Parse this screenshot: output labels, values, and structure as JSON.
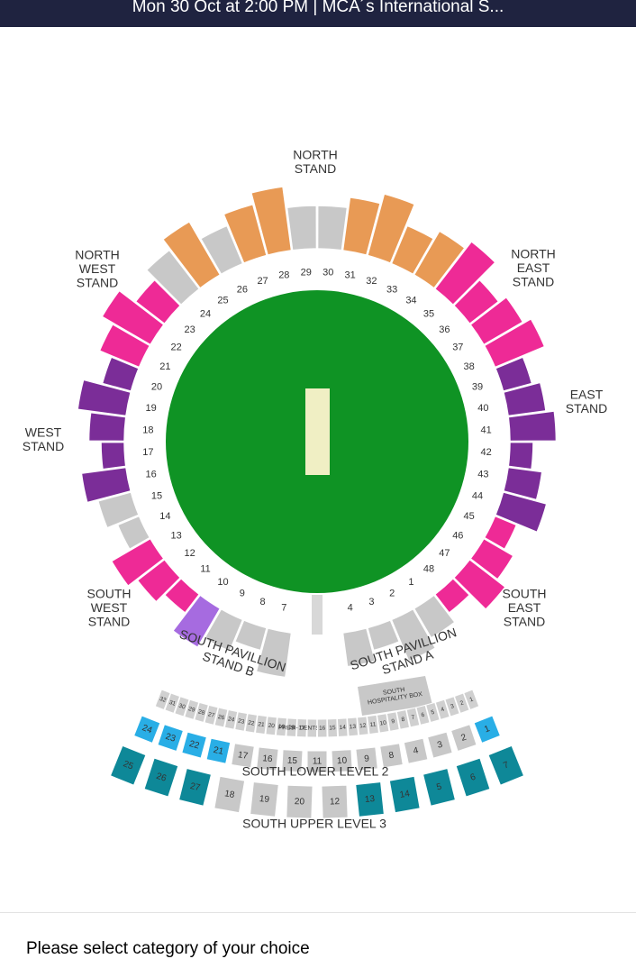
{
  "header": {
    "title": "Mon 30 Oct at 2:00 PM | MCA´s International S..."
  },
  "ring": [
    {
      "label": 30,
      "color": "#c8c8c8"
    },
    {
      "label": 31,
      "color": "#e89a55"
    },
    {
      "label": 32,
      "color": "#e89a55"
    },
    {
      "label": 33,
      "color": "#e89a55"
    },
    {
      "label": 34,
      "color": "#e89a55"
    },
    {
      "label": 35,
      "color": "#ee2a96"
    },
    {
      "label": 36,
      "color": "#ee2a96"
    },
    {
      "label": 37,
      "color": "#ee2a96"
    },
    {
      "label": 38,
      "color": "#ee2a96"
    },
    {
      "label": 39,
      "color": "#7b2d98"
    },
    {
      "label": 40,
      "color": "#7b2d98"
    },
    {
      "label": 41,
      "color": "#7b2d98"
    },
    {
      "label": 42,
      "color": "#7b2d98"
    },
    {
      "label": 43,
      "color": "#7b2d98"
    },
    {
      "label": 44,
      "color": "#7b2d98"
    },
    {
      "label": 45,
      "color": "#ee2a96"
    },
    {
      "label": 46,
      "color": "#ee2a96"
    },
    {
      "label": 47,
      "color": "#ee2a96"
    },
    {
      "label": 48,
      "color": "#ee2a96"
    },
    {
      "label": 1,
      "color": "#c8c8c8"
    },
    {
      "label": 2,
      "color": "#c8c8c8"
    },
    {
      "label": 3,
      "color": "#c8c8c8"
    },
    {
      "label": 4,
      "color": "#c8c8c8"
    },
    {
      "label": 7,
      "color": "#c8c8c8"
    },
    {
      "label": 8,
      "color": "#c8c8c8"
    },
    {
      "label": 9,
      "color": "#c8c8c8"
    },
    {
      "label": 10,
      "color": "#a66be0"
    },
    {
      "label": 11,
      "color": "#ee2a96"
    },
    {
      "label": 12,
      "color": "#ee2a96"
    },
    {
      "label": 13,
      "color": "#ee2a96"
    },
    {
      "label": 14,
      "color": "#c8c8c8"
    },
    {
      "label": 15,
      "color": "#c8c8c8"
    },
    {
      "label": 16,
      "color": "#7b2d98"
    },
    {
      "label": 17,
      "color": "#7b2d98"
    },
    {
      "label": 18,
      "color": "#7b2d98"
    },
    {
      "label": 19,
      "color": "#7b2d98"
    },
    {
      "label": 20,
      "color": "#7b2d98"
    },
    {
      "label": 21,
      "color": "#ee2a96"
    },
    {
      "label": 22,
      "color": "#ee2a96"
    },
    {
      "label": 23,
      "color": "#ee2a96"
    },
    {
      "label": 24,
      "color": "#c8c8c8"
    },
    {
      "label": 25,
      "color": "#e89a55"
    },
    {
      "label": 26,
      "color": "#c8c8c8"
    },
    {
      "label": 27,
      "color": "#e89a55"
    },
    {
      "label": 28,
      "color": "#e89a55"
    },
    {
      "label": 29,
      "color": "#c8c8c8"
    }
  ],
  "stands": {
    "north": [
      "NORTH",
      "STAND"
    ],
    "north_west": [
      "NORTH",
      "WEST",
      "STAND"
    ],
    "north_east": [
      "NORTH",
      "EAST",
      "STAND"
    ],
    "east": [
      "EAST",
      "STAND"
    ],
    "west": [
      "WEST",
      "STAND"
    ],
    "south_west": [
      "SOUTH",
      "WEST",
      "STAND"
    ],
    "south_east": [
      "SOUTH",
      "EAST",
      "STAND"
    ],
    "pavillion_b": [
      "SOUTH PAVILLION",
      "STAND B"
    ],
    "pavillion_a": [
      "SOUTH PAVILLION",
      "STAND A"
    ]
  },
  "hospitality": [
    "SOUTH",
    "HOSPITALITY BOX"
  ],
  "small_row": [
    "32",
    "31",
    "30",
    "29",
    "28",
    "27",
    "26",
    "24",
    "23",
    "22",
    "21",
    "20",
    "19",
    "18",
    "17",
    "PRESI- DENTS LOUNGE",
    "16",
    "15",
    "14",
    "13",
    "12",
    "11",
    "10",
    "9",
    "8",
    "7",
    "6",
    "5",
    "4",
    "3",
    "2",
    "1"
  ],
  "lower_level": {
    "title": "SOUTH LOWER LEVEL 2",
    "blocks": [
      {
        "label": 24,
        "color": "#29aee6"
      },
      {
        "label": 23,
        "color": "#29aee6"
      },
      {
        "label": 22,
        "color": "#29aee6"
      },
      {
        "label": 21,
        "color": "#29aee6"
      },
      {
        "label": 17,
        "color": "#c8c8c8"
      },
      {
        "label": 16,
        "color": "#c8c8c8"
      },
      {
        "label": 15,
        "color": "#c8c8c8"
      },
      {
        "label": 11,
        "color": "#c8c8c8"
      },
      {
        "label": 10,
        "color": "#c8c8c8"
      },
      {
        "label": 9,
        "color": "#c8c8c8"
      },
      {
        "label": 8,
        "color": "#c8c8c8"
      },
      {
        "label": 4,
        "color": "#c8c8c8"
      },
      {
        "label": 3,
        "color": "#c8c8c8"
      },
      {
        "label": 2,
        "color": "#c8c8c8"
      },
      {
        "label": 1,
        "color": "#29aee6"
      }
    ]
  },
  "upper_level": {
    "title": "SOUTH UPPER LEVEL 3",
    "blocks": [
      {
        "label": 25,
        "color": "#0e8898"
      },
      {
        "label": 26,
        "color": "#0e8898"
      },
      {
        "label": 27,
        "color": "#0e8898"
      },
      {
        "label": 18,
        "color": "#c8c8c8"
      },
      {
        "label": 19,
        "color": "#c8c8c8"
      },
      {
        "label": 20,
        "color": "#c8c8c8"
      },
      {
        "label": 12,
        "color": "#c8c8c8"
      },
      {
        "label": 13,
        "color": "#0e8898"
      },
      {
        "label": 14,
        "color": "#0e8898"
      },
      {
        "label": 5,
        "color": "#0e8898"
      },
      {
        "label": 6,
        "color": "#0e8898"
      },
      {
        "label": 7,
        "color": "#0e8898"
      }
    ]
  },
  "footer": {
    "prompt": "Please select category of your choice"
  }
}
